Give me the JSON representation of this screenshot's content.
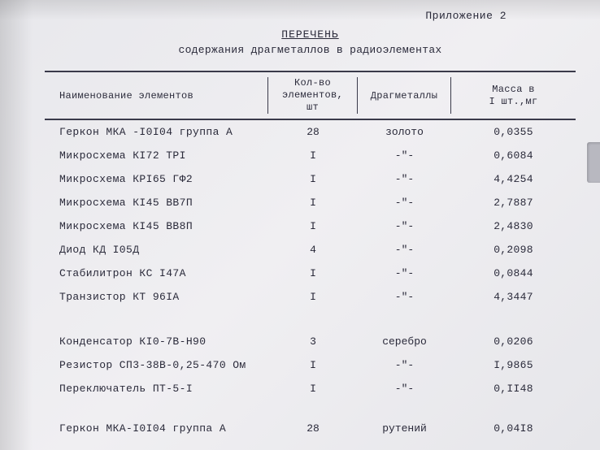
{
  "appendix": "Приложение 2",
  "title": "ПЕРЕЧЕНЬ",
  "subtitle": "содержания драгметаллов в радиоэлементах",
  "headers": {
    "name": "Наименование элементов",
    "qty_line1": "Кол-во",
    "qty_line2": "элементов,",
    "qty_line3": "шт",
    "metal": "Драгметаллы",
    "mass_line1": "Масса в",
    "mass_line2": "I шт.,мг"
  },
  "sections": [
    {
      "rows": [
        {
          "name": "Геркон МКА -I0I04 группа А",
          "qty": "28",
          "metal": "золото",
          "mass": "0,0355"
        },
        {
          "name": "Микросхема КI72 ТРI",
          "qty": "I",
          "metal": "-\"-",
          "mass": "0,6084"
        },
        {
          "name": "Микросхема КРI65 ГФ2",
          "qty": "I",
          "metal": "-\"-",
          "mass": "4,4254"
        },
        {
          "name": "Микросхема КI45 ВВ7П",
          "qty": "I",
          "metal": "-\"-",
          "mass": "2,7887"
        },
        {
          "name": "Микросхема КI45 ВВ8П",
          "qty": "I",
          "metal": "-\"-",
          "mass": "2,4830"
        },
        {
          "name": "Диод КД I05Д",
          "qty": "4",
          "metal": "-\"-",
          "mass": "0,2098"
        },
        {
          "name": "Стабилитрон КС I47А",
          "qty": "I",
          "metal": "-\"-",
          "mass": "0,0844"
        },
        {
          "name": "Транзистор КТ 96IА",
          "qty": "I",
          "metal": "-\"-",
          "mass": "4,3447"
        }
      ]
    },
    {
      "rows": [
        {
          "name": "Конденсатор КI0-7В-Н90",
          "qty": "3",
          "metal": "серебро",
          "mass": "0,0206"
        },
        {
          "name": "Резистор СП3-38В-0,25-470 Ом",
          "qty": "I",
          "metal": "-\"-",
          "mass": "I,9865"
        },
        {
          "name": "Переключатель ПТ-5-I",
          "qty": "I",
          "metal": "-\"-",
          "mass": "0,II48"
        }
      ]
    },
    {
      "rows": [
        {
          "name": "Геркон МКА-I0I04 группа А",
          "qty": "28",
          "metal": "рутений",
          "mass": "0,04I8"
        }
      ]
    }
  ]
}
